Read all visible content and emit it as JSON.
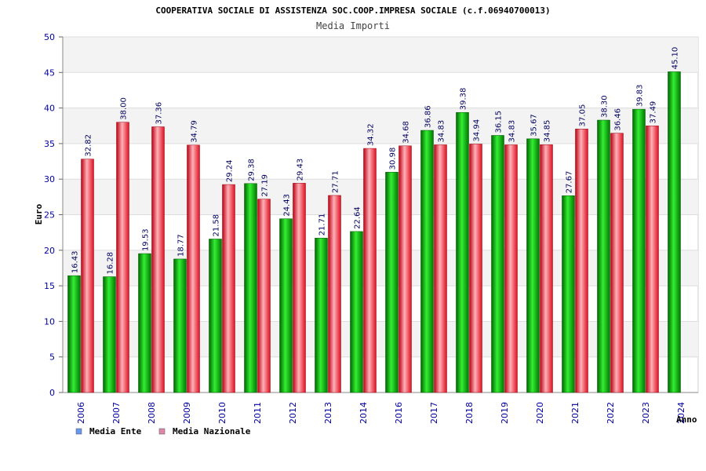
{
  "chart_data": {
    "type": "bar",
    "title": "COOPERATIVA SOCIALE DI ASSISTENZA SOC.COOP.IMPRESA SOCIALE (c.f.06940700013)",
    "subtitle": "Media Importi",
    "xlabel": "Anno",
    "ylabel": "Euro",
    "ylim": [
      0,
      50
    ],
    "yticks": [
      0,
      5,
      10,
      15,
      20,
      25,
      30,
      35,
      40,
      45,
      50
    ],
    "grid": true,
    "legend_position": "bottom-left",
    "categories": [
      "2006",
      "2007",
      "2008",
      "2009",
      "2010",
      "2011",
      "2012",
      "2013",
      "2014",
      "2016",
      "2017",
      "2018",
      "2019",
      "2020",
      "2021",
      "2022",
      "2023",
      "2024"
    ],
    "series": [
      {
        "name": "Media Ente",
        "color": "#00b000",
        "legend_color": "#6699ee",
        "values": [
          16.43,
          16.28,
          19.53,
          18.77,
          21.58,
          29.38,
          24.43,
          21.71,
          22.64,
          30.98,
          36.86,
          39.38,
          36.15,
          35.67,
          27.67,
          38.3,
          39.83,
          45.1
        ],
        "labels": [
          "16.43",
          "16.28",
          "19.53",
          "18.77",
          "21.58",
          "29.38",
          "24.43",
          "21.71",
          "22.64",
          "30.98",
          "36.86",
          "39.38",
          "36.15",
          "35.67",
          "27.67",
          "38.30",
          "39.83",
          "45.10"
        ]
      },
      {
        "name": "Media Nazionale",
        "color": "#ee1c2c",
        "legend_color": "#dd88aa",
        "values": [
          32.82,
          38.0,
          37.36,
          34.79,
          29.24,
          27.19,
          29.43,
          27.71,
          34.32,
          34.68,
          34.83,
          34.94,
          34.83,
          34.85,
          37.05,
          36.46,
          37.49,
          null
        ],
        "labels": [
          "32.82",
          "38.00",
          "37.36",
          "34.79",
          "29.24",
          "27.19",
          "29.43",
          "27.71",
          "34.32",
          "34.68",
          "34.83",
          "34.94",
          "34.83",
          "34.85",
          "37.05",
          "36.46",
          "37.49",
          null
        ]
      }
    ]
  }
}
